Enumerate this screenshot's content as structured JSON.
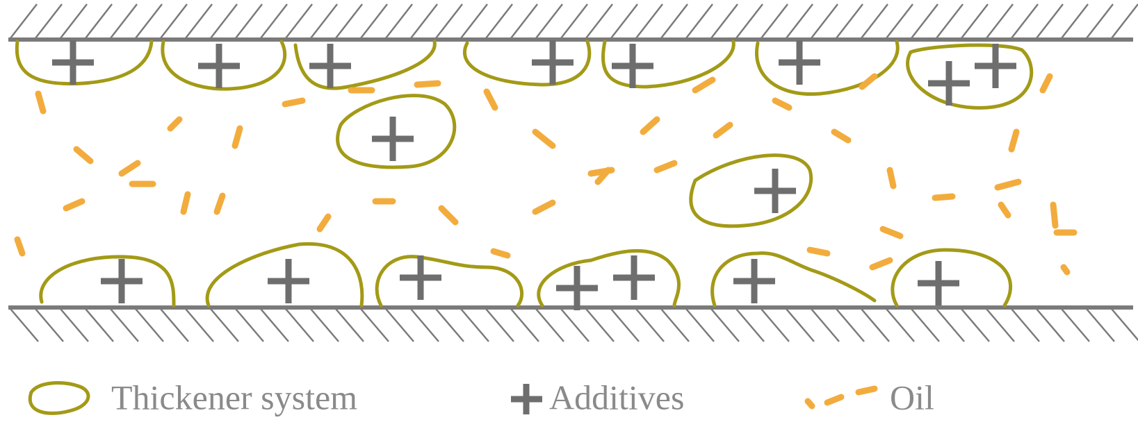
{
  "legend": {
    "items": [
      {
        "label": "Thickener system"
      },
      {
        "label": "Additives"
      },
      {
        "label": "Oil"
      }
    ]
  }
}
